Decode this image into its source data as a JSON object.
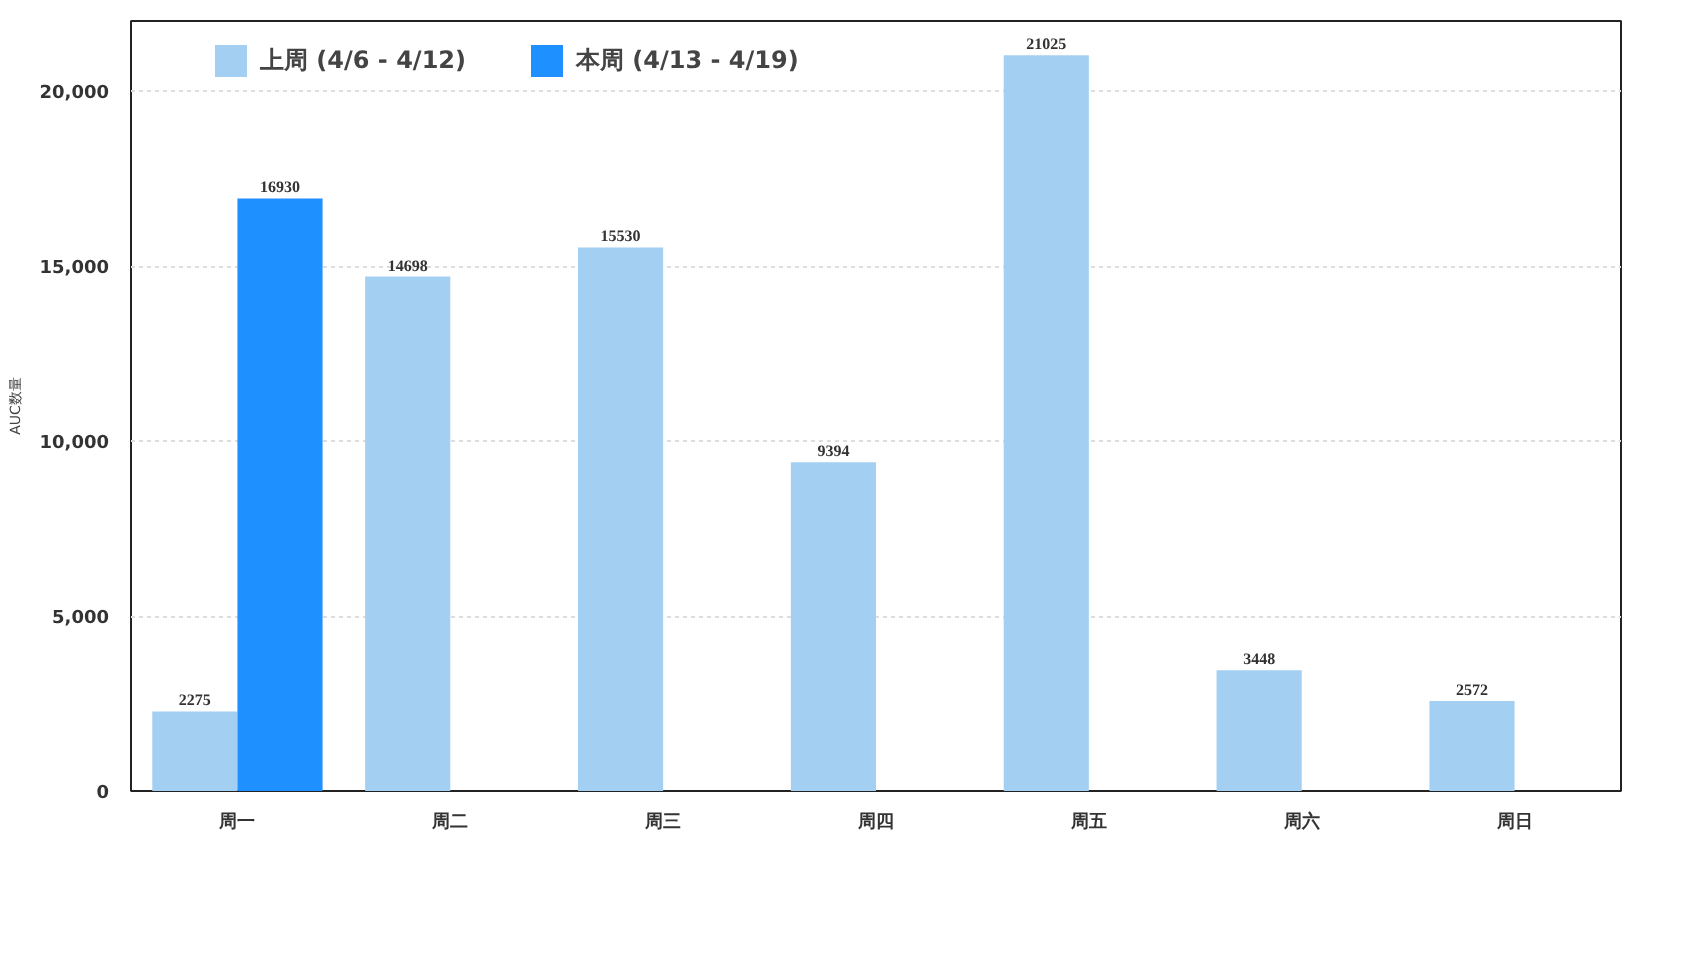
{
  "chart_data": {
    "type": "bar",
    "categories": [
      "周一",
      "周二",
      "周三",
      "周四",
      "周五",
      "周六",
      "周日"
    ],
    "ylabel": "AUC数量",
    "series": [
      {
        "name": "上周 (4/6 - 4/12)",
        "color": "#a3cff3",
        "values": [
          2275,
          14698,
          15530,
          9394,
          21025,
          3448,
          2572
        ]
      },
      {
        "name": "本周 (4/13 - 4/19)",
        "color": "#1e90ff",
        "values": [
          16930,
          null,
          null,
          null,
          null,
          null,
          null
        ]
      }
    ],
    "ylim": [
      0,
      22000
    ],
    "yticks": [
      {
        "value": 0,
        "label": "0"
      },
      {
        "value": 5000,
        "label": "5,000"
      },
      {
        "value": 10000,
        "label": "10,000"
      },
      {
        "value": 15000,
        "label": "15,000"
      },
      {
        "value": 20000,
        "label": "20,000"
      }
    ],
    "grid": "y",
    "legend": "top",
    "data_labels": true
  }
}
